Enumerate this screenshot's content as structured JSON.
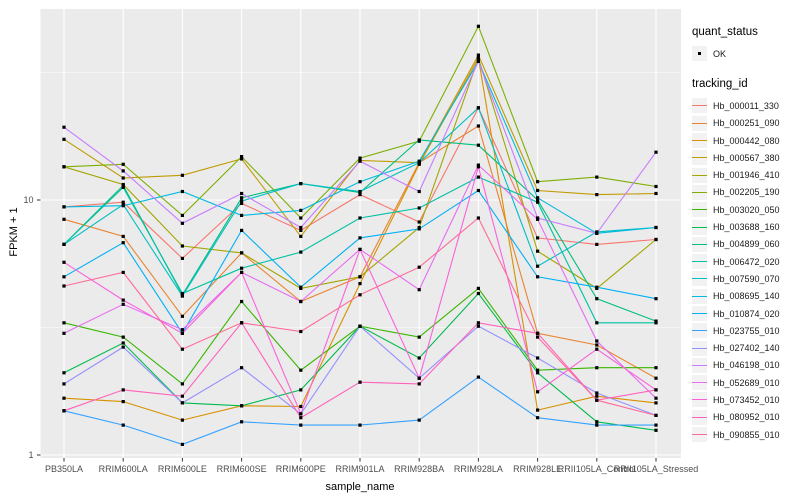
{
  "figure": {
    "xlabel": "sample_name",
    "ylabel": "FPKM + 1",
    "panel_bg": "#EBEBEB",
    "grid_color": "#FFFFFF",
    "axis_text_color": "#4D4D4D",
    "tick_color": "#333333",
    "y_tick_labels": [
      "1",
      "10"
    ],
    "y_tick_values": [
      1,
      10
    ]
  },
  "legend": {
    "quant_title": "quant_status",
    "quant_items": [
      {
        "label": "OK",
        "marker": "black-point"
      }
    ],
    "tracking_title": "tracking_id",
    "key_bg": "#F2F2F2"
  },
  "chart_data": {
    "type": "line",
    "x_scale": "categorical",
    "y_scale": "log10",
    "ylim": [
      1,
      55
    ],
    "grid": "on",
    "legend_position": "right",
    "marker": "small black square (quant_status OK)",
    "xlabel": "sample_name",
    "ylabel": "FPKM + 1",
    "categories": [
      "PB350LA",
      "RRIM600LA",
      "RRIM600LE",
      "RRIM600SE",
      "RRIM600PE",
      "RRIM901LA",
      "RRIM928BA",
      "RRIM928LA",
      "RRIM928LE",
      "RRII105LA_Control",
      "RRII105LA_Stressed"
    ],
    "series": [
      {
        "name": "Hb_000011_330",
        "color": "#F8766D",
        "values": [
          9.4,
          9.8,
          5.9,
          9.7,
          7.6,
          10.5,
          8.2,
          23.0,
          7.1,
          6.7,
          7.0
        ]
      },
      {
        "name": "Hb_000251_090",
        "color": "#EA8331",
        "values": [
          8.4,
          7.2,
          3.5,
          6.2,
          4.0,
          5.0,
          14.0,
          19.5,
          3.0,
          2.7,
          2.0
        ]
      },
      {
        "name": "Hb_000442_080",
        "color": "#D89000",
        "values": [
          1.67,
          1.62,
          1.37,
          1.56,
          1.55,
          4.7,
          13.8,
          36.0,
          1.5,
          1.7,
          1.6
        ]
      },
      {
        "name": "Hb_000567_380",
        "color": "#C09B00",
        "values": [
          17.3,
          12.2,
          12.5,
          14.5,
          7.2,
          14.3,
          14.0,
          37.0,
          10.9,
          10.5,
          10.6
        ]
      },
      {
        "name": "Hb_001946_410",
        "color": "#A3A500",
        "values": [
          13.5,
          11.5,
          6.6,
          6.2,
          4.5,
          5.0,
          7.8,
          36.0,
          6.3,
          4.5,
          7.0
        ]
      },
      {
        "name": "Hb_002205_190",
        "color": "#7CAE00",
        "values": [
          13.5,
          13.8,
          8.7,
          14.8,
          8.5,
          14.6,
          17.0,
          48.0,
          11.8,
          12.3,
          11.3
        ]
      },
      {
        "name": "Hb_003020_050",
        "color": "#39B600",
        "values": [
          3.3,
          2.9,
          1.9,
          4.0,
          2.15,
          3.2,
          2.9,
          4.5,
          2.15,
          2.2,
          2.2
        ]
      },
      {
        "name": "Hb_003688_160",
        "color": "#00BB4E",
        "values": [
          2.1,
          2.75,
          1.6,
          1.56,
          1.8,
          3.2,
          2.4,
          4.3,
          2.1,
          1.35,
          1.25
        ]
      },
      {
        "name": "Hb_004899_060",
        "color": "#00BF7D",
        "values": [
          6.7,
          11.4,
          4.25,
          10.2,
          11.6,
          10.7,
          17.2,
          16.4,
          10.0,
          4.1,
          3.35
        ]
      },
      {
        "name": "Hb_006472_020",
        "color": "#00C1A3",
        "values": [
          6.7,
          11.2,
          4.3,
          5.4,
          6.25,
          8.5,
          9.3,
          12.3,
          9.8,
          3.3,
          3.3
        ]
      },
      {
        "name": "Hb_007590_070",
        "color": "#00BFC4",
        "values": [
          6.7,
          9.6,
          4.2,
          9.9,
          11.6,
          10.8,
          14.0,
          23.0,
          5.5,
          7.5,
          7.8
        ]
      },
      {
        "name": "Hb_008695_140",
        "color": "#00BAE0",
        "values": [
          9.4,
          9.5,
          10.8,
          8.7,
          9.1,
          11.8,
          14.2,
          35.0,
          10.2,
          7.4,
          7.8
        ]
      },
      {
        "name": "Hb_010874_020",
        "color": "#00B0F6",
        "values": [
          5.0,
          6.8,
          3.0,
          7.6,
          4.55,
          7.1,
          7.7,
          10.9,
          5.0,
          4.55,
          4.1
        ]
      },
      {
        "name": "Hb_023755_010",
        "color": "#35A2FF",
        "values": [
          1.49,
          1.31,
          1.1,
          1.35,
          1.31,
          1.31,
          1.37,
          2.02,
          1.4,
          1.31,
          1.31
        ]
      },
      {
        "name": "Hb_027402_140",
        "color": "#9590FF",
        "values": [
          1.9,
          2.65,
          1.6,
          2.2,
          1.45,
          3.2,
          2.0,
          3.2,
          2.4,
          1.75,
          1.43
        ]
      },
      {
        "name": "Hb_046198_010",
        "color": "#C77CFF",
        "values": [
          19.3,
          13.0,
          8.1,
          10.6,
          7.8,
          14.2,
          10.8,
          35.0,
          8.5,
          7.4,
          15.4
        ]
      },
      {
        "name": "Hb_052689_010",
        "color": "#E76BF3",
        "values": [
          3.0,
          3.9,
          3.1,
          5.2,
          4.0,
          6.4,
          4.45,
          13.7,
          8.4,
          2.8,
          1.67
        ]
      },
      {
        "name": "Hb_073452_010",
        "color": "#FA62DB",
        "values": [
          5.7,
          4.05,
          3.0,
          5.2,
          1.45,
          6.4,
          2.0,
          13.5,
          1.77,
          2.6,
          1.8
        ]
      },
      {
        "name": "Hb_080952_010",
        "color": "#FF62BC",
        "values": [
          1.49,
          1.8,
          1.7,
          3.3,
          1.4,
          1.93,
          1.9,
          3.3,
          3.0,
          1.64,
          1.8
        ]
      },
      {
        "name": "Hb_090855_010",
        "color": "#FF6A98",
        "values": [
          4.6,
          5.2,
          2.6,
          3.3,
          3.05,
          4.25,
          5.45,
          8.5,
          2.9,
          1.64,
          1.43
        ]
      }
    ]
  }
}
